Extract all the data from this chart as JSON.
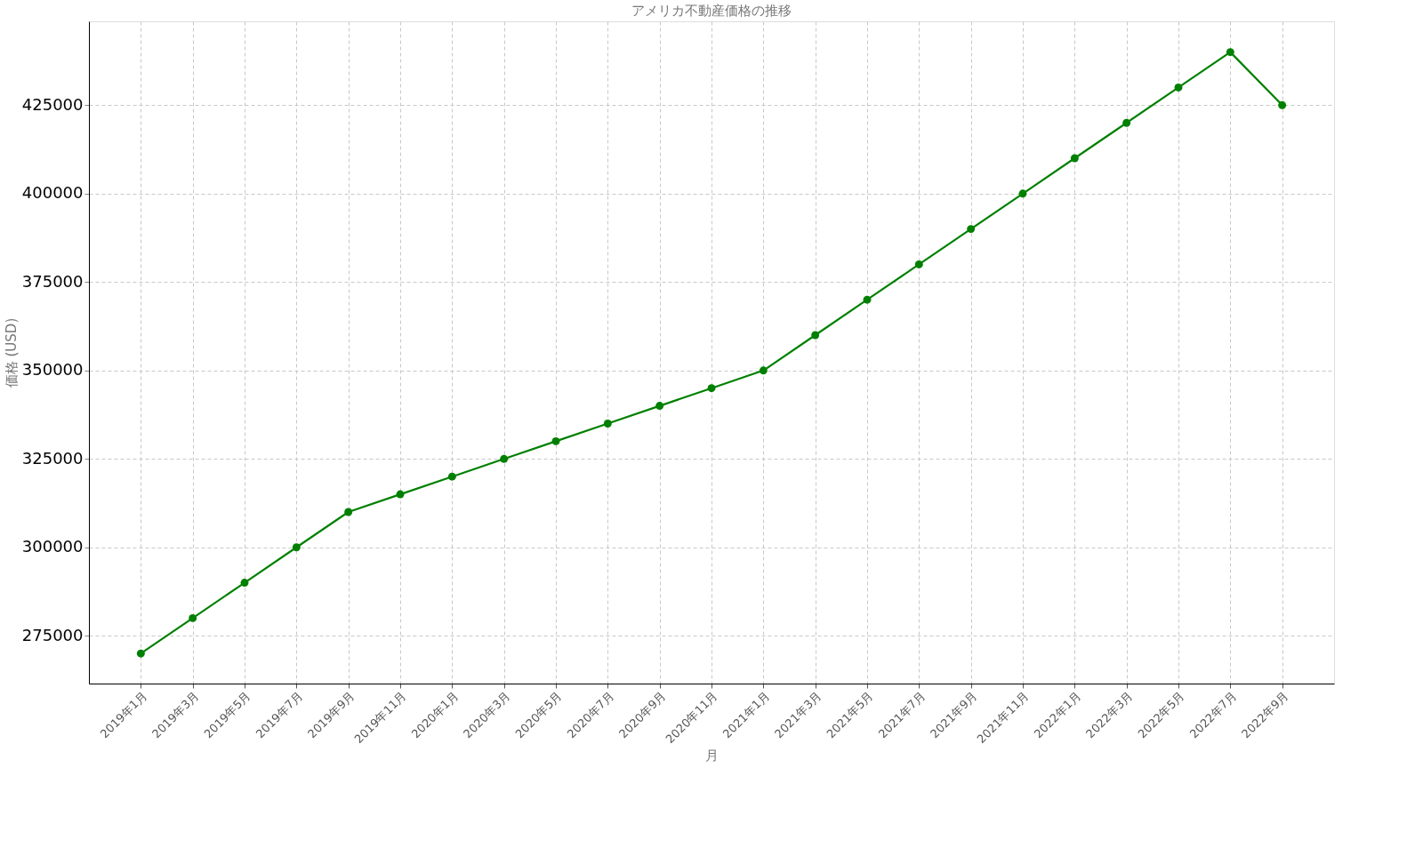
{
  "chart_data": {
    "type": "line",
    "title": "アメリカ不動産価格の推移",
    "xlabel": "月",
    "ylabel": "価格 (USD)",
    "categories": [
      "2019年1月",
      "2019年3月",
      "2019年5月",
      "2019年7月",
      "2019年9月",
      "2019年11月",
      "2020年1月",
      "2020年3月",
      "2020年5月",
      "2020年7月",
      "2020年9月",
      "2020年11月",
      "2021年1月",
      "2021年3月",
      "2021年5月",
      "2021年7月",
      "2021年9月",
      "2021年11月",
      "2022年1月",
      "2022年3月",
      "2022年5月",
      "2022年7月",
      "2022年9月"
    ],
    "series": [
      {
        "color": "#008000",
        "values": [
          270000,
          280000,
          290000,
          300000,
          310000,
          315000,
          320000,
          325000,
          330000,
          335000,
          340000,
          345000,
          350000,
          360000,
          370000,
          380000,
          390000,
          400000,
          410000,
          420000,
          430000,
          440000,
          425000
        ]
      }
    ],
    "ylim": [
      261500,
      448700
    ],
    "yticks": [
      275000,
      300000,
      325000,
      350000,
      375000,
      400000,
      425000
    ],
    "grid": true,
    "marker": "circle",
    "line_style": "solid"
  }
}
